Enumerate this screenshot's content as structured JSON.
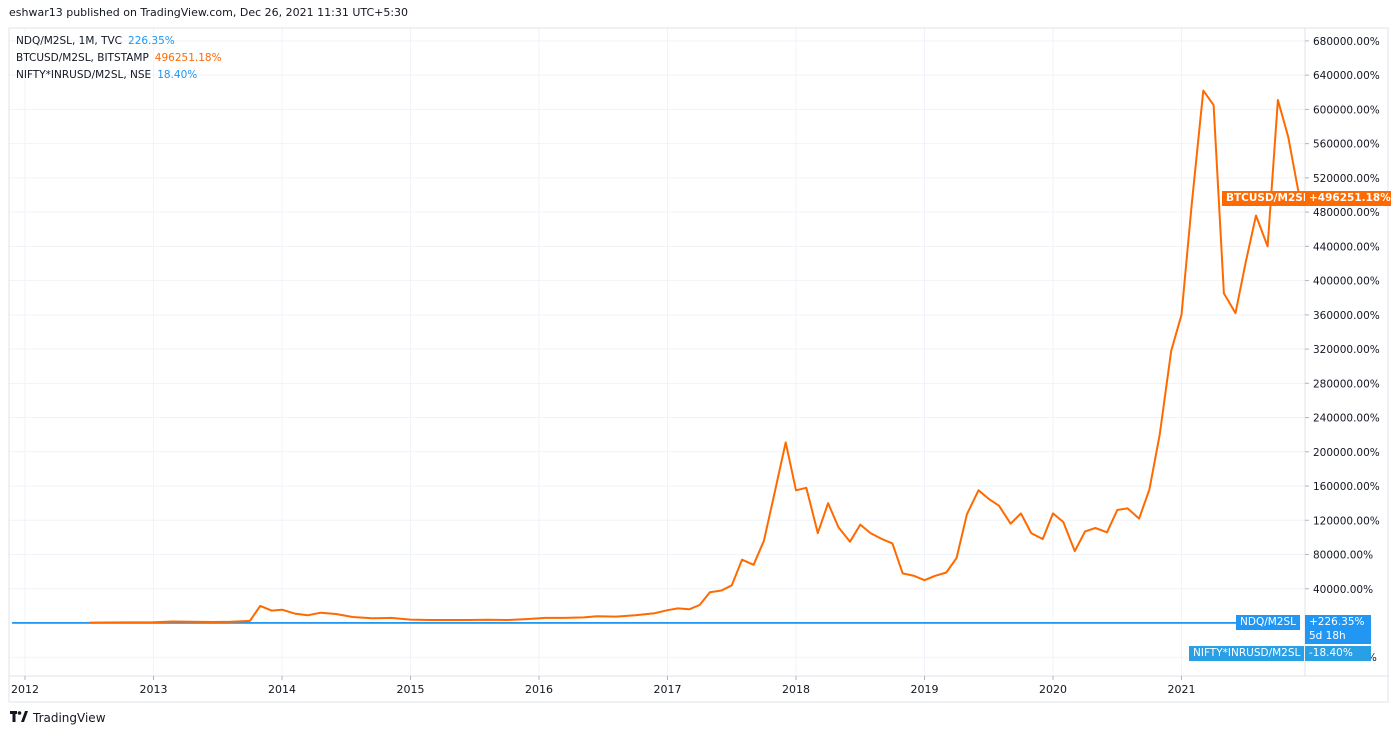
{
  "header": {
    "published": "eshwar13 published on TradingView.com, Dec 26, 2021 11:31 UTC+5:30"
  },
  "legend": [
    {
      "symbol": "NDQ/M2SL, 1M, TVC",
      "value": "226.35%",
      "color": "#2196f3"
    },
    {
      "symbol": "BTCUSD/M2SL, BITSTAMP",
      "value": "496251.18%",
      "color": "#ff6a00"
    },
    {
      "symbol": "NIFTY*INRUSD/M2SL, NSE",
      "value": "18.40%",
      "color": "#2196f3"
    }
  ],
  "price_labels": {
    "btc_name": "BTCUSD/M2SL",
    "btc_value": "+496251.18%",
    "ndq_name": "NDQ/M2SL",
    "ndq_value": "+226.35%",
    "countdown": "5d 18h",
    "nifty_name": "NIFTY*INRUSD/M2SL",
    "nifty_value": "-18.40%"
  },
  "footer": {
    "brand": "TradingView"
  },
  "colors": {
    "btc": "#ff6a00",
    "ndq": "#2196f3",
    "nifty": "#29a0e6",
    "grid": "#f0f3fa"
  },
  "chart_data": {
    "type": "line",
    "x_ticks": [
      "2012",
      "2013",
      "2014",
      "2015",
      "2016",
      "2017",
      "2018",
      "2019",
      "2020",
      "2021"
    ],
    "y_ticks": [
      "680000.00%",
      "640000.00%",
      "600000.00%",
      "560000.00%",
      "520000.00%",
      "480000.00%",
      "440000.00%",
      "400000.00%",
      "360000.00%",
      "320000.00%",
      "280000.00%",
      "240000.00%",
      "200000.00%",
      "160000.00%",
      "120000.00%",
      "80000.00%",
      "40000.00%",
      "0.00%",
      "-40000.00%"
    ],
    "ylim": [
      -40000,
      680000
    ],
    "grid": true,
    "series": [
      {
        "name": "BTCUSD/M2SL",
        "x": [
          2012.5,
          2013.0,
          2013.15,
          2013.3,
          2013.45,
          2013.6,
          2013.75,
          2013.83,
          2013.92,
          2014.0,
          2014.1,
          2014.2,
          2014.3,
          2014.42,
          2014.55,
          2014.7,
          2014.85,
          2015.0,
          2015.15,
          2015.3,
          2015.45,
          2015.6,
          2015.75,
          2015.9,
          2016.05,
          2016.2,
          2016.35,
          2016.45,
          2016.6,
          2016.75,
          2016.9,
          2017.0,
          2017.08,
          2017.17,
          2017.25,
          2017.33,
          2017.42,
          2017.5,
          2017.58,
          2017.67,
          2017.75,
          2017.83,
          2017.92,
          2018.0,
          2018.08,
          2018.17,
          2018.25,
          2018.33,
          2018.42,
          2018.5,
          2018.58,
          2018.67,
          2018.75,
          2018.83,
          2018.92,
          2019.0,
          2019.08,
          2019.17,
          2019.25,
          2019.33,
          2019.42,
          2019.5,
          2019.58,
          2019.67,
          2019.75,
          2019.83,
          2019.92,
          2020.0,
          2020.08,
          2020.17,
          2020.25,
          2020.33,
          2020.42,
          2020.5,
          2020.58,
          2020.67,
          2020.75,
          2020.83,
          2020.92,
          2021.0,
          2021.08,
          2021.17,
          2021.25,
          2021.33,
          2021.42,
          2021.5,
          2021.58,
          2021.67,
          2021.75,
          2021.83,
          2021.92
        ],
        "values": [
          500,
          800,
          1800,
          1500,
          1200,
          1500,
          2500,
          20000,
          14500,
          15500,
          11000,
          9000,
          12000,
          10500,
          7000,
          5500,
          6000,
          4000,
          3500,
          3500,
          3500,
          3800,
          3500,
          4500,
          6000,
          6000,
          6500,
          8000,
          7500,
          9000,
          11500,
          15000,
          17000,
          16000,
          21000,
          36000,
          38000,
          44000,
          74000,
          68000,
          96000,
          150000,
          211000,
          155000,
          158000,
          105000,
          140000,
          112000,
          95000,
          115000,
          105000,
          98000,
          93000,
          58000,
          55000,
          50000,
          55000,
          59000,
          76000,
          127000,
          155000,
          145000,
          137000,
          116000,
          128000,
          105000,
          98000,
          128000,
          118000,
          84000,
          107000,
          111000,
          106000,
          132000,
          134000,
          122000,
          156000,
          220000,
          318000,
          360000,
          490000,
          622000,
          605000,
          385000,
          362000,
          422000,
          476000,
          440000,
          611000,
          568000,
          496000
        ]
      },
      {
        "name": "NDQ/M2SL",
        "x": [
          2011.9,
          2021.92
        ],
        "values": [
          226,
          226
        ]
      },
      {
        "name": "NIFTY*INRUSD/M2SL",
        "x": [
          2011.9,
          2021.92
        ],
        "values": [
          -18,
          -18
        ]
      }
    ]
  }
}
